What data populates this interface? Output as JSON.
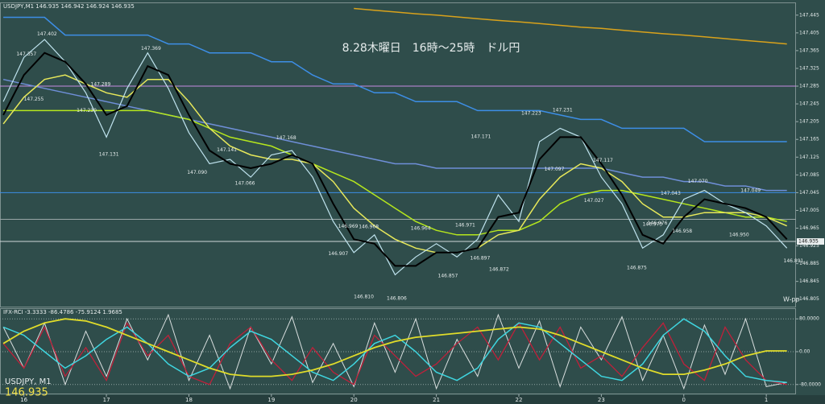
{
  "chart_data": [
    {
      "type": "line",
      "header": "USDJPY,M1  146.935 146.942 146.924 146.935",
      "title": "8.28木曜日　16時～25時　ドル円",
      "symbol": "USDJPY, M1",
      "symbol_price": 146.935,
      "badge": "W-pp",
      "xlim": [
        15.71,
        25.36
      ],
      "ylim": [
        146.79,
        147.47
      ],
      "yticks": [
        147.445,
        147.405,
        147.365,
        147.325,
        147.285,
        147.245,
        147.205,
        147.165,
        147.125,
        147.085,
        147.045,
        147.005,
        146.965,
        146.925,
        146.885,
        146.845,
        146.805
      ],
      "current_price": 146.935,
      "hlines": [
        {
          "value": 147.285,
          "color": "#c58be0"
        },
        {
          "value": 147.045,
          "color": "#3d8ee6"
        },
        {
          "value": 146.985,
          "color": "#9aa7a7"
        },
        {
          "value": 146.935,
          "color": "#cfd8d8"
        }
      ],
      "x": [
        15.75,
        16,
        16.25,
        16.5,
        16.75,
        17,
        17.25,
        17.5,
        17.75,
        18,
        18.25,
        18.5,
        18.75,
        19,
        19.25,
        19.5,
        19.75,
        20,
        20.25,
        20.5,
        20.75,
        21,
        21.25,
        21.5,
        21.75,
        22,
        22.25,
        22.5,
        22.75,
        23,
        23.25,
        23.5,
        23.75,
        24,
        24.25,
        24.5,
        24.75,
        25,
        25.25
      ],
      "series": [
        {
          "color": "#3d8ee6",
          "width": 1.5,
          "values": [
            147.44,
            147.44,
            147.44,
            147.4,
            147.4,
            147.4,
            147.4,
            147.4,
            147.38,
            147.38,
            147.36,
            147.36,
            147.36,
            147.34,
            147.34,
            147.31,
            147.29,
            147.29,
            147.27,
            147.27,
            147.25,
            147.25,
            147.25,
            147.23,
            147.23,
            147.23,
            147.23,
            147.22,
            147.21,
            147.21,
            147.19,
            147.19,
            147.19,
            147.19,
            147.16,
            147.16,
            147.16,
            147.16,
            147.16
          ]
        },
        {
          "color": "#d9a21b",
          "width": 1.5,
          "values": [
            null,
            null,
            null,
            null,
            null,
            null,
            null,
            null,
            null,
            null,
            null,
            null,
            null,
            null,
            null,
            null,
            null,
            147.46,
            147.456,
            147.452,
            147.448,
            147.445,
            147.441,
            147.437,
            147.433,
            147.43,
            147.426,
            147.422,
            147.418,
            147.415,
            147.411,
            147.407,
            147.403,
            147.4,
            147.396,
            147.392,
            147.388,
            147.384,
            147.38
          ]
        },
        {
          "color": "#6f8fd8",
          "width": 1.5,
          "values": [
            147.3,
            147.29,
            147.28,
            147.27,
            147.26,
            147.25,
            147.24,
            147.23,
            147.22,
            147.21,
            147.2,
            147.19,
            147.18,
            147.17,
            147.16,
            147.15,
            147.14,
            147.13,
            147.12,
            147.11,
            147.11,
            147.1,
            147.1,
            147.1,
            147.1,
            147.1,
            147.1,
            147.1,
            147.1,
            147.1,
            147.09,
            147.08,
            147.08,
            147.07,
            147.07,
            147.06,
            147.06,
            147.05,
            147.05
          ]
        },
        {
          "color": "#b5e61d",
          "width": 1.5,
          "values": [
            147.23,
            147.23,
            147.23,
            147.23,
            147.23,
            147.23,
            147.23,
            147.23,
            147.22,
            147.21,
            147.19,
            147.17,
            147.16,
            147.15,
            147.13,
            147.11,
            147.09,
            147.07,
            147.04,
            147.01,
            146.98,
            146.96,
            146.95,
            146.95,
            146.96,
            146.96,
            146.98,
            147.02,
            147.04,
            147.05,
            147.05,
            147.04,
            147.03,
            147.02,
            147.01,
            147.0,
            146.99,
            146.99,
            146.98
          ]
        },
        {
          "color": "#e7e85a",
          "width": 1.5,
          "values": [
            147.2,
            147.26,
            147.3,
            147.31,
            147.29,
            147.27,
            147.26,
            147.3,
            147.3,
            147.25,
            147.19,
            147.15,
            147.13,
            147.12,
            147.12,
            147.11,
            147.07,
            147.01,
            146.97,
            146.94,
            146.92,
            146.91,
            146.91,
            146.92,
            146.95,
            146.96,
            147.03,
            147.08,
            147.11,
            147.1,
            147.07,
            147.02,
            146.99,
            146.99,
            147.0,
            147.0,
            147.0,
            146.99,
            146.97
          ]
        },
        {
          "color": "#bfe3ee",
          "width": 1.2,
          "values": [
            147.25,
            147.35,
            147.39,
            147.34,
            147.27,
            147.17,
            147.28,
            147.36,
            147.28,
            147.18,
            147.11,
            147.12,
            147.08,
            147.13,
            147.14,
            147.08,
            146.98,
            146.91,
            146.95,
            146.86,
            146.9,
            146.93,
            146.9,
            146.94,
            147.04,
            146.98,
            147.16,
            147.19,
            147.17,
            147.08,
            147.02,
            146.92,
            146.95,
            147.03,
            147.05,
            147.02,
            147.0,
            146.97,
            146.92
          ]
        },
        {
          "color": "#000000",
          "width": 2,
          "values": [
            147.22,
            147.31,
            147.36,
            147.34,
            147.29,
            147.22,
            147.24,
            147.33,
            147.31,
            147.22,
            147.14,
            147.11,
            147.1,
            147.11,
            147.13,
            147.11,
            147.02,
            146.94,
            146.93,
            146.88,
            146.88,
            146.91,
            146.91,
            146.92,
            146.99,
            147.0,
            147.12,
            147.17,
            147.17,
            147.11,
            147.04,
            146.95,
            146.93,
            146.99,
            147.03,
            147.02,
            147.01,
            146.99,
            146.94
          ]
        }
      ],
      "annotations": [
        {
          "x": 16.28,
          "y": 147.402,
          "label": "147.402"
        },
        {
          "x": 16.03,
          "y": 147.357,
          "label": "147.357"
        },
        {
          "x": 16.93,
          "y": 147.289,
          "label": "147.289"
        },
        {
          "x": 16.12,
          "y": 147.255,
          "label": "147.255"
        },
        {
          "x": 16.76,
          "y": 147.23,
          "label": "147.230"
        },
        {
          "x": 17.03,
          "y": 147.131,
          "label": "147.131"
        },
        {
          "x": 17.54,
          "y": 147.369,
          "label": "147.369"
        },
        {
          "x": 18.1,
          "y": 147.09,
          "label": "147.090"
        },
        {
          "x": 18.46,
          "y": 147.141,
          "label": "147.141"
        },
        {
          "x": 19.18,
          "y": 147.168,
          "label": "147.168"
        },
        {
          "x": 18.68,
          "y": 147.066,
          "label": "147.066"
        },
        {
          "x": 19.93,
          "y": 146.969,
          "label": "146.969"
        },
        {
          "x": 20.18,
          "y": 146.968,
          "label": "146.968"
        },
        {
          "x": 19.81,
          "y": 146.907,
          "label": "146.907"
        },
        {
          "x": 20.12,
          "y": 146.81,
          "label": "146.810"
        },
        {
          "x": 20.52,
          "y": 146.806,
          "label": "146.806"
        },
        {
          "x": 20.81,
          "y": 146.964,
          "label": "146.964"
        },
        {
          "x": 21.14,
          "y": 146.857,
          "label": "146.857"
        },
        {
          "x": 21.35,
          "y": 146.971,
          "label": "146.971"
        },
        {
          "x": 21.53,
          "y": 146.897,
          "label": "146.897"
        },
        {
          "x": 21.54,
          "y": 147.171,
          "label": "147.171"
        },
        {
          "x": 21.76,
          "y": 146.872,
          "label": "146.872"
        },
        {
          "x": 22.15,
          "y": 147.223,
          "label": "147.223"
        },
        {
          "x": 22.53,
          "y": 147.231,
          "label": "147.231"
        },
        {
          "x": 22.43,
          "y": 147.097,
          "label": "147.097"
        },
        {
          "x": 23.02,
          "y": 147.117,
          "label": "147.117"
        },
        {
          "x": 22.91,
          "y": 147.027,
          "label": "147.027"
        },
        {
          "x": 23.43,
          "y": 146.875,
          "label": "146.875"
        },
        {
          "x": 23.62,
          "y": 146.973,
          "label": "146.973"
        },
        {
          "x": 23.68,
          "y": 146.976,
          "label": "146.976"
        },
        {
          "x": 23.84,
          "y": 147.043,
          "label": "147.043"
        },
        {
          "x": 23.98,
          "y": 146.958,
          "label": "146.958"
        },
        {
          "x": 24.17,
          "y": 147.07,
          "label": "147.070"
        },
        {
          "x": 24.81,
          "y": 147.049,
          "label": "147.049"
        },
        {
          "x": 24.67,
          "y": 146.95,
          "label": "146.950"
        },
        {
          "x": 25.33,
          "y": 146.891,
          "label": "146.891"
        }
      ]
    },
    {
      "type": "line",
      "header": "IFX-RCI -3.3333 -86.4786 -75.9124 1.9685",
      "xlim": [
        15.71,
        25.36
      ],
      "xticks": [
        16,
        17,
        18,
        19,
        20,
        21,
        22,
        23,
        {
          "value": 24,
          "label": "0"
        },
        {
          "value": 25,
          "label": "1"
        }
      ],
      "ylim": [
        -100,
        100
      ],
      "yticks": [
        {
          "value": 80,
          "label": "80.0000"
        },
        {
          "value": 0,
          "label": "0.00"
        },
        {
          "value": -80,
          "label": "-80.0000"
        }
      ],
      "x": [
        15.75,
        16,
        16.25,
        16.5,
        16.75,
        17,
        17.25,
        17.5,
        17.75,
        18,
        18.25,
        18.5,
        18.75,
        19,
        19.25,
        19.5,
        19.75,
        20,
        20.25,
        20.5,
        20.75,
        21,
        21.25,
        21.5,
        21.75,
        22,
        22.25,
        22.5,
        22.75,
        23,
        23.25,
        23.5,
        23.75,
        24,
        24.25,
        24.5,
        24.75,
        25,
        25.25
      ],
      "series": [
        {
          "color": "#d8dede",
          "width": 1,
          "values": [
            60,
            -40,
            70,
            -80,
            50,
            -60,
            80,
            -20,
            90,
            -70,
            40,
            -90,
            60,
            -30,
            85,
            -75,
            20,
            -85,
            70,
            -50,
            80,
            -90,
            30,
            -60,
            90,
            -40,
            75,
            -85,
            60,
            -20,
            85,
            -70,
            40,
            -90,
            65,
            -55,
            80,
            -85,
            -75
          ]
        },
        {
          "color": "#c0203a",
          "width": 1.3,
          "values": [
            20,
            -40,
            60,
            -60,
            10,
            -70,
            70,
            -10,
            40,
            -60,
            -80,
            20,
            60,
            -20,
            -70,
            10,
            -50,
            -80,
            40,
            -10,
            -60,
            -30,
            20,
            60,
            -20,
            70,
            -20,
            60,
            -40,
            -10,
            -60,
            10,
            70,
            -30,
            -70,
            60,
            -20,
            -70,
            -80
          ]
        },
        {
          "color": "#3fd6e0",
          "width": 1.5,
          "values": [
            60,
            40,
            0,
            -40,
            -10,
            30,
            60,
            20,
            -30,
            -60,
            -40,
            10,
            50,
            30,
            -10,
            -50,
            -70,
            -30,
            20,
            40,
            0,
            -50,
            -70,
            -40,
            30,
            70,
            60,
            20,
            -20,
            -60,
            -70,
            -30,
            40,
            80,
            50,
            -10,
            -60,
            -70,
            -75
          ]
        },
        {
          "color": "#e0dc2a",
          "width": 1.8,
          "values": [
            20,
            50,
            70,
            80,
            75,
            60,
            40,
            20,
            0,
            -20,
            -40,
            -55,
            -60,
            -60,
            -55,
            -45,
            -30,
            -10,
            10,
            25,
            35,
            40,
            45,
            50,
            55,
            60,
            55,
            40,
            20,
            0,
            -20,
            -40,
            -55,
            -55,
            -45,
            -30,
            -10,
            2,
            2
          ]
        }
      ]
    }
  ]
}
